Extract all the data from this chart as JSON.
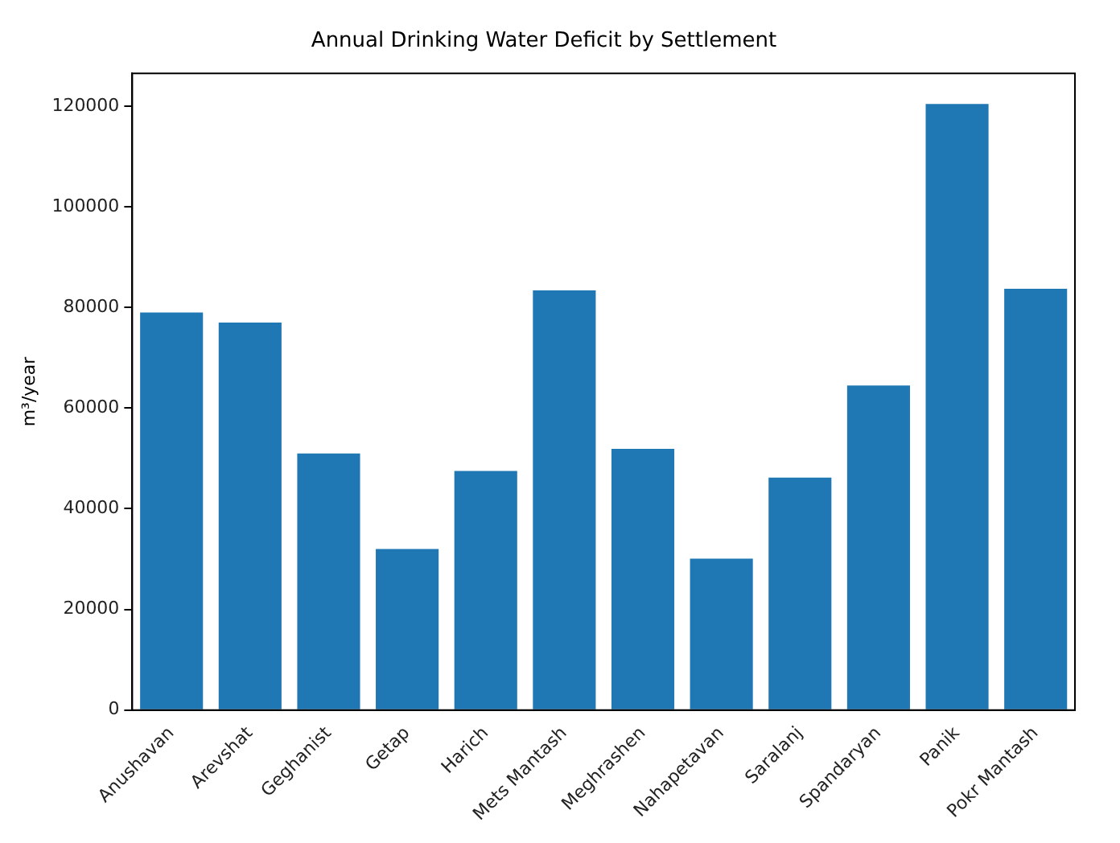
{
  "chart_data": {
    "type": "bar",
    "title": "Annual Drinking Water Deficit by Settlement",
    "ylabel": "m³/year",
    "categories": [
      "Anushavan",
      "Arevshat",
      "Geghanist",
      "Getap",
      "Harich",
      "Mets Mantash",
      "Meghrashen",
      "Nahapetavan",
      "Saralanj",
      "Spandaryan",
      "Panik",
      "Pokr Mantash"
    ],
    "values": [
      79000,
      77000,
      51000,
      32000,
      47500,
      83400,
      51900,
      30100,
      46200,
      64500,
      120400,
      83700
    ],
    "color": "#1f77b4",
    "ylim": [
      0,
      126500
    ],
    "yticks": [
      0,
      20000,
      40000,
      60000,
      80000,
      100000,
      120000
    ],
    "grid": false,
    "legend": false
  }
}
